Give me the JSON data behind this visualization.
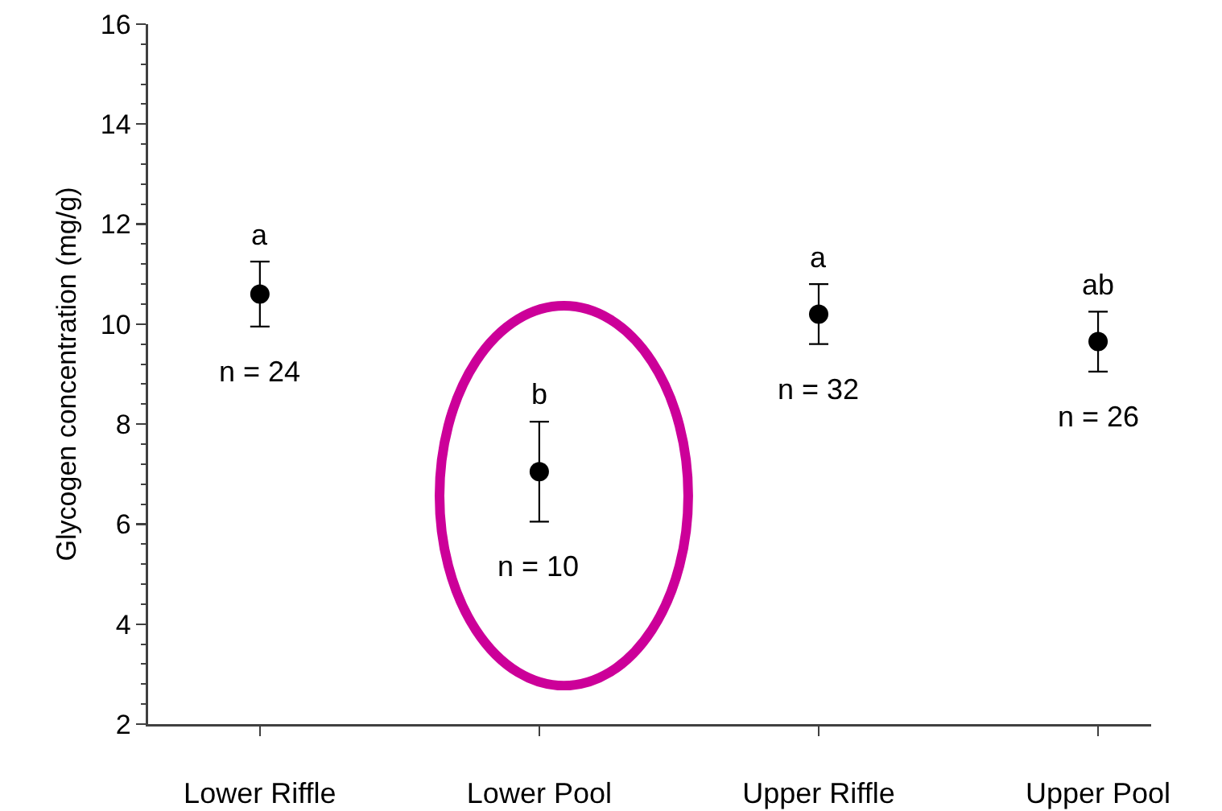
{
  "chart_data": {
    "type": "scatter",
    "ylabel": "Glycogen concentration (mg/g)",
    "categories": [
      "Lower Riffle",
      "Lower Pool",
      "Upper Riffle",
      "Upper Pool"
    ],
    "values": [
      10.6,
      7.05,
      10.2,
      9.65
    ],
    "errors": [
      0.65,
      1.0,
      0.6,
      0.6
    ],
    "color": "#000000",
    "marker": "circle",
    "ylim": [
      2,
      16
    ],
    "yticks": [
      2,
      {
        "value": 2.4,
        "label": null
      },
      {
        "value": 2.8,
        "label": null
      },
      {
        "value": 3.2,
        "label": null
      },
      {
        "value": 3.6,
        "label": null
      },
      4,
      {
        "value": 4.4,
        "label": null
      },
      {
        "value": 4.8,
        "label": null
      },
      {
        "value": 5.2,
        "label": null
      },
      {
        "value": 5.6,
        "label": null
      },
      6,
      {
        "value": 6.4,
        "label": null
      },
      {
        "value": 6.8,
        "label": null
      },
      {
        "value": 7.2,
        "label": null
      },
      {
        "value": 7.6,
        "label": null
      },
      8,
      {
        "value": 8.4,
        "label": null
      },
      {
        "value": 8.8,
        "label": null
      },
      {
        "value": 9.2,
        "label": null
      },
      {
        "value": 9.6,
        "label": null
      },
      10,
      {
        "value": 10.4,
        "label": null
      },
      {
        "value": 10.8,
        "label": null
      },
      {
        "value": 11.2,
        "label": null
      },
      {
        "value": 11.6,
        "label": null
      },
      12,
      {
        "value": 12.4,
        "label": null
      },
      {
        "value": 12.8,
        "label": null
      },
      {
        "value": 13.2,
        "label": null
      },
      {
        "value": 13.6,
        "label": null
      },
      14,
      {
        "value": 14.4,
        "label": null
      },
      {
        "value": 14.8,
        "label": null
      },
      {
        "value": 15.2,
        "label": null
      },
      {
        "value": 15.6,
        "label": null
      },
      16
    ],
    "grid": false,
    "legend": false,
    "annotations": [
      "a",
      "n = 24",
      "b",
      "n = 10",
      "a",
      "n = 32",
      "ab",
      "n = 26"
    ]
  }
}
